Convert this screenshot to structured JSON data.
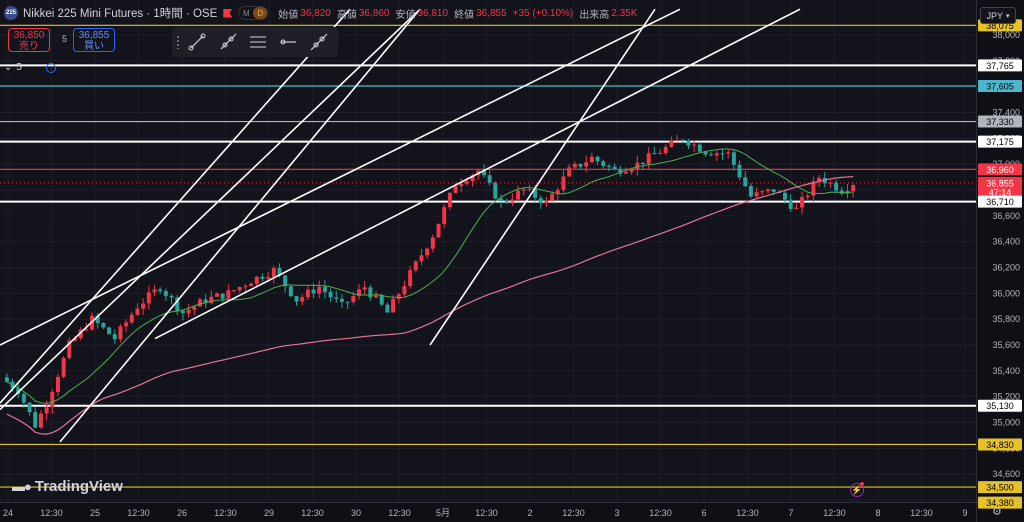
{
  "header": {
    "logo_text": "225",
    "title": "Nikkei 225 Mini Futures · 1時間 · OSE",
    "mode_m": "M",
    "mode_d": "D",
    "open_label": "始値",
    "open_value": "36,820",
    "high_label": "高値",
    "high_value": "36,860",
    "low_label": "安値",
    "low_value": "36,810",
    "close_label": "終値",
    "close_value": "36,855",
    "change_value": "+35 (+0.10%)",
    "volume_label": "出来高",
    "volume_value": "2.35K"
  },
  "trade": {
    "sell_price": "36,850",
    "sell_label": "売り",
    "spread": "5",
    "buy_price": "36,855",
    "buy_label": "買い"
  },
  "toolbar": {
    "tools": [
      "trend-line-tool",
      "ray-tool",
      "parallel-channel-tool",
      "horizontal-ray-tool",
      "extended-line-tool"
    ]
  },
  "indicator_collapse": {
    "count": "5"
  },
  "currency": {
    "label": "JPY"
  },
  "watermark": {
    "brand": "TradingView"
  },
  "colors": {
    "up": "#f23645",
    "down": "#26a69a",
    "background": "#13131c",
    "ma_short": "#4caf50",
    "ma_long": "#e57399",
    "level_white": "#ffffff",
    "level_teal": "#4db6ce",
    "level_red": "#f23645",
    "level_yellow": "#e6c229"
  },
  "chart_data": {
    "type": "candlestick",
    "y_range": [
      34300,
      38100
    ],
    "y_ticks": [
      "38,000",
      "37,800",
      "37,600",
      "37,400",
      "37,200",
      "37,000",
      "36,800",
      "36,600",
      "36,400",
      "36,200",
      "36,000",
      "35,800",
      "35,600",
      "35,400",
      "35,200",
      "35,000",
      "34,800",
      "34,600",
      "34,400"
    ],
    "x_ticks": [
      "24",
      "12:30",
      "25",
      "12:30",
      "26",
      "12:30",
      "29",
      "12:30",
      "30",
      "12:30",
      "5月",
      "12:30",
      "2",
      "12:30",
      "3",
      "12:30",
      "6",
      "12:30",
      "7",
      "12:30",
      "8",
      "12:30",
      "9",
      "12:30"
    ],
    "price_labels": [
      {
        "text": "38,075",
        "value": 38075,
        "color": "#e6c229"
      },
      {
        "text": "37,765",
        "value": 37765,
        "color": "#ffffff"
      },
      {
        "text": "37,605",
        "value": 37605,
        "color": "#4db6ce"
      },
      {
        "text": "37,330",
        "value": 37330,
        "color": "#b2b5be"
      },
      {
        "text": "37,175",
        "value": 37175,
        "color": "#ffffff"
      },
      {
        "text": "36,960",
        "value": 36960,
        "color": "#f23645"
      },
      {
        "text": "36,855",
        "value": 36855,
        "color": "#f23645",
        "countdown": "47:14"
      },
      {
        "text": "36,710",
        "value": 36710,
        "color": "#ffffff"
      },
      {
        "text": "35,130",
        "value": 35130,
        "color": "#ffffff"
      },
      {
        "text": "34,830",
        "value": 34830,
        "color": "#e6c229"
      },
      {
        "text": "34,500",
        "value": 34500,
        "color": "#e6c229"
      },
      {
        "text": "34,380",
        "value": 34380,
        "color": "#e6c229"
      }
    ],
    "horizontal_levels": [
      {
        "value": 38075,
        "color": "#e6c229"
      },
      {
        "value": 37765,
        "color": "#ffffff"
      },
      {
        "value": 37605,
        "color": "#4db6ce"
      },
      {
        "value": 37330,
        "color": "#b2b5be"
      },
      {
        "value": 37175,
        "color": "#ffffff"
      },
      {
        "value": 36960,
        "color": "#f23645"
      },
      {
        "value": 36710,
        "color": "#ffffff"
      },
      {
        "value": 35130,
        "color": "#ffffff"
      },
      {
        "value": 34830,
        "color": "#e6c229"
      },
      {
        "value": 34500,
        "color": "#e6c229"
      }
    ],
    "candle_path": [
      {
        "t": 0,
        "v": 35350
      },
      {
        "t": 3,
        "v": 35250
      },
      {
        "t": 6,
        "v": 34980
      },
      {
        "t": 8,
        "v": 35150
      },
      {
        "t": 12,
        "v": 35600
      },
      {
        "t": 16,
        "v": 35800
      },
      {
        "t": 20,
        "v": 35650
      },
      {
        "t": 24,
        "v": 35900
      },
      {
        "t": 28,
        "v": 36050
      },
      {
        "t": 32,
        "v": 35850
      },
      {
        "t": 36,
        "v": 35950
      },
      {
        "t": 40,
        "v": 36000
      },
      {
        "t": 44,
        "v": 36100
      },
      {
        "t": 48,
        "v": 36180
      },
      {
        "t": 52,
        "v": 35950
      },
      {
        "t": 56,
        "v": 36050
      },
      {
        "t": 60,
        "v": 35900
      },
      {
        "t": 64,
        "v": 36050
      },
      {
        "t": 68,
        "v": 35850
      },
      {
        "t": 72,
        "v": 36150
      },
      {
        "t": 76,
        "v": 36450
      },
      {
        "t": 80,
        "v": 36850
      },
      {
        "t": 84,
        "v": 36950
      },
      {
        "t": 88,
        "v": 36700
      },
      {
        "t": 92,
        "v": 36800
      },
      {
        "t": 96,
        "v": 36700
      },
      {
        "t": 100,
        "v": 36950
      },
      {
        "t": 104,
        "v": 37050
      },
      {
        "t": 108,
        "v": 36950
      },
      {
        "t": 112,
        "v": 37000
      },
      {
        "t": 116,
        "v": 37100
      },
      {
        "t": 120,
        "v": 37200
      },
      {
        "t": 124,
        "v": 37100
      },
      {
        "t": 128,
        "v": 37080
      },
      {
        "t": 132,
        "v": 36750
      },
      {
        "t": 136,
        "v": 36800
      },
      {
        "t": 140,
        "v": 36650
      },
      {
        "t": 144,
        "v": 36900
      },
      {
        "t": 148,
        "v": 36800
      },
      {
        "t": 150,
        "v": 36855
      }
    ],
    "trend_lines": [
      {
        "x1": 0,
        "y1": 35600,
        "x2": 680,
        "y2": 38200
      },
      {
        "x1": 0,
        "y1": 35100,
        "x2": 420,
        "y2": 38200
      },
      {
        "x1": 60,
        "y1": 34850,
        "x2": 420,
        "y2": 38200
      },
      {
        "x1": 155,
        "y1": 35650,
        "x2": 800,
        "y2": 38200
      },
      {
        "x1": 430,
        "y1": 35600,
        "x2": 655,
        "y2": 38200
      },
      {
        "x1": 0,
        "y1": 35150,
        "x2": 350,
        "y2": 38200
      }
    ]
  }
}
